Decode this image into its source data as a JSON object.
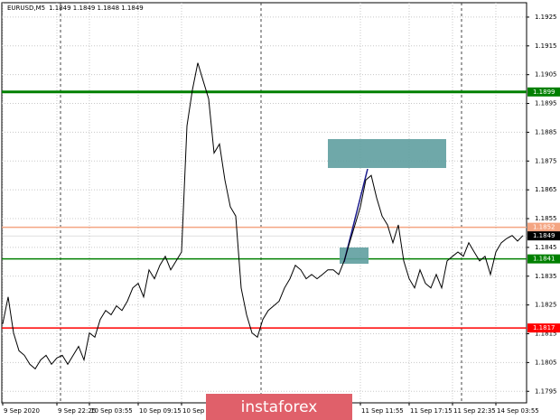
{
  "chart_data": {
    "type": "line",
    "title": "EURUSD,M5",
    "subtitle": "1.1849 1.1849 1.1848 1.1849",
    "watermark": "instaforex",
    "categories": [
      "9 Sep 2020",
      null,
      null,
      null,
      null,
      null,
      null,
      null,
      null,
      null,
      "9 Sep 22:25",
      null,
      null,
      null,
      null,
      null,
      "10 Sep 03:55",
      null,
      null,
      null,
      null,
      null,
      null,
      null,
      null,
      "10 Sep 09:15",
      null,
      null,
      null,
      null,
      null,
      null,
      null,
      "10 Sep",
      null,
      null,
      null,
      null,
      null,
      null,
      null,
      null,
      null,
      null,
      null,
      null,
      null,
      null,
      null,
      null,
      null,
      null,
      null,
      null,
      null,
      null,
      null,
      null,
      null,
      null,
      null,
      null,
      null,
      null,
      null,
      null,
      "11 Sep 11:55",
      null,
      null,
      null,
      null,
      null,
      null,
      null,
      null,
      "11 Sep 17:15",
      null,
      null,
      null,
      null,
      null,
      null,
      null,
      "11 Sep 22:35",
      null,
      null,
      null,
      null,
      null,
      null,
      null,
      "14 Sep 03:55",
      null,
      null,
      null,
      null,
      null
    ],
    "series": [
      {
        "name": "EURUSD",
        "color": "#000000",
        "values": [
          1.18184,
          1.18278,
          1.18153,
          1.18091,
          1.18075,
          1.18044,
          1.18028,
          1.18059,
          1.18075,
          1.18044,
          1.18066,
          1.18075,
          1.18044,
          1.18075,
          1.18106,
          1.18059,
          1.18153,
          1.18138,
          1.182,
          1.18231,
          1.18216,
          1.18247,
          1.18231,
          1.18263,
          1.18309,
          1.18325,
          1.18278,
          1.18372,
          1.18341,
          1.18388,
          1.18419,
          1.18372,
          1.18403,
          1.18434,
          1.18872,
          1.18997,
          1.19091,
          1.19028,
          1.18966,
          1.18778,
          1.18809,
          1.18684,
          1.18591,
          1.18559,
          1.18309,
          1.18216,
          1.18153,
          1.18138,
          1.182,
          1.18231,
          1.18247,
          1.18263,
          1.18309,
          1.18341,
          1.18388,
          1.18372,
          1.18341,
          1.18356,
          1.18341,
          1.18356,
          1.18372,
          1.18372,
          1.18356,
          1.18403,
          1.18466,
          1.18528,
          1.18591,
          1.18684,
          1.187,
          1.18622,
          1.18559,
          1.18528,
          1.18466,
          1.18528,
          1.18403,
          1.18341,
          1.18309,
          1.18372,
          1.18325,
          1.18309,
          1.18356,
          1.18309,
          1.18403,
          1.18419,
          1.18434,
          1.18419,
          1.18466,
          1.18434,
          1.18403,
          1.18419,
          1.18356,
          1.18434,
          1.18466,
          1.18481,
          1.18491,
          1.18472,
          1.18491
        ]
      }
    ],
    "ylim": [
      1.1791,
      1.193
    ],
    "yticks": [
      1.1925,
      1.1915,
      1.1905,
      1.1895,
      1.1885,
      1.1875,
      1.1865,
      1.1855,
      1.1845,
      1.1835,
      1.1825,
      1.1815,
      1.1805,
      1.1795
    ],
    "levels": [
      {
        "value": 1.1899,
        "color": "#008000"
      },
      {
        "value": 1.1852,
        "color": "#f4a582"
      },
      {
        "value": 1.1841,
        "color": "#008000"
      },
      {
        "value": 1.1817,
        "color": "#ff0000"
      }
    ],
    "current_price": 1.1849,
    "grid": true
  }
}
